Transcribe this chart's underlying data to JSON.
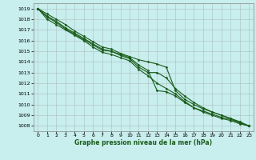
{
  "title": "Graphe pression niveau de la mer (hPa)",
  "bg_color": "#c8eeed",
  "grid_color": "#b0c8c8",
  "line_color": "#1a5c1a",
  "marker": "D",
  "marker_size": 1.5,
  "line_width": 0.8,
  "xlim": [
    -0.5,
    23.5
  ],
  "ylim": [
    1007.5,
    1019.5
  ],
  "yticks": [
    1008,
    1009,
    1010,
    1011,
    1012,
    1013,
    1014,
    1015,
    1016,
    1017,
    1018,
    1019
  ],
  "xticks": [
    0,
    1,
    2,
    3,
    4,
    5,
    6,
    7,
    8,
    9,
    10,
    11,
    12,
    13,
    14,
    15,
    16,
    17,
    18,
    19,
    20,
    21,
    22,
    23
  ],
  "series": [
    [
      1019.0,
      1018.5,
      1018.0,
      1017.5,
      1016.9,
      1016.4,
      1015.9,
      1015.4,
      1015.2,
      1014.8,
      1014.5,
      1014.2,
      1014.0,
      1013.8,
      1013.5,
      1011.3,
      1010.5,
      1010.0,
      1009.6,
      1009.3,
      1009.0,
      1008.7,
      1008.4,
      1008.0
    ],
    [
      1019.0,
      1018.3,
      1017.8,
      1017.2,
      1016.7,
      1016.2,
      1015.7,
      1015.2,
      1015.0,
      1014.6,
      1014.3,
      1013.5,
      1013.0,
      1013.0,
      1012.5,
      1011.5,
      1010.8,
      1010.2,
      1009.7,
      1009.3,
      1009.0,
      1008.7,
      1008.3,
      1008.0
    ],
    [
      1019.0,
      1018.2,
      1017.7,
      1017.1,
      1016.6,
      1016.1,
      1015.6,
      1015.1,
      1015.0,
      1014.7,
      1014.4,
      1013.7,
      1013.2,
      1011.3,
      1011.2,
      1010.8,
      1010.2,
      1009.7,
      1009.4,
      1009.1,
      1008.8,
      1008.6,
      1008.3,
      1008.0
    ],
    [
      1019.0,
      1018.0,
      1017.5,
      1017.0,
      1016.5,
      1016.0,
      1015.4,
      1014.9,
      1014.7,
      1014.4,
      1014.1,
      1013.3,
      1012.7,
      1012.0,
      1011.5,
      1011.0,
      1010.3,
      1009.7,
      1009.3,
      1009.0,
      1008.7,
      1008.5,
      1008.2,
      1008.0
    ]
  ]
}
